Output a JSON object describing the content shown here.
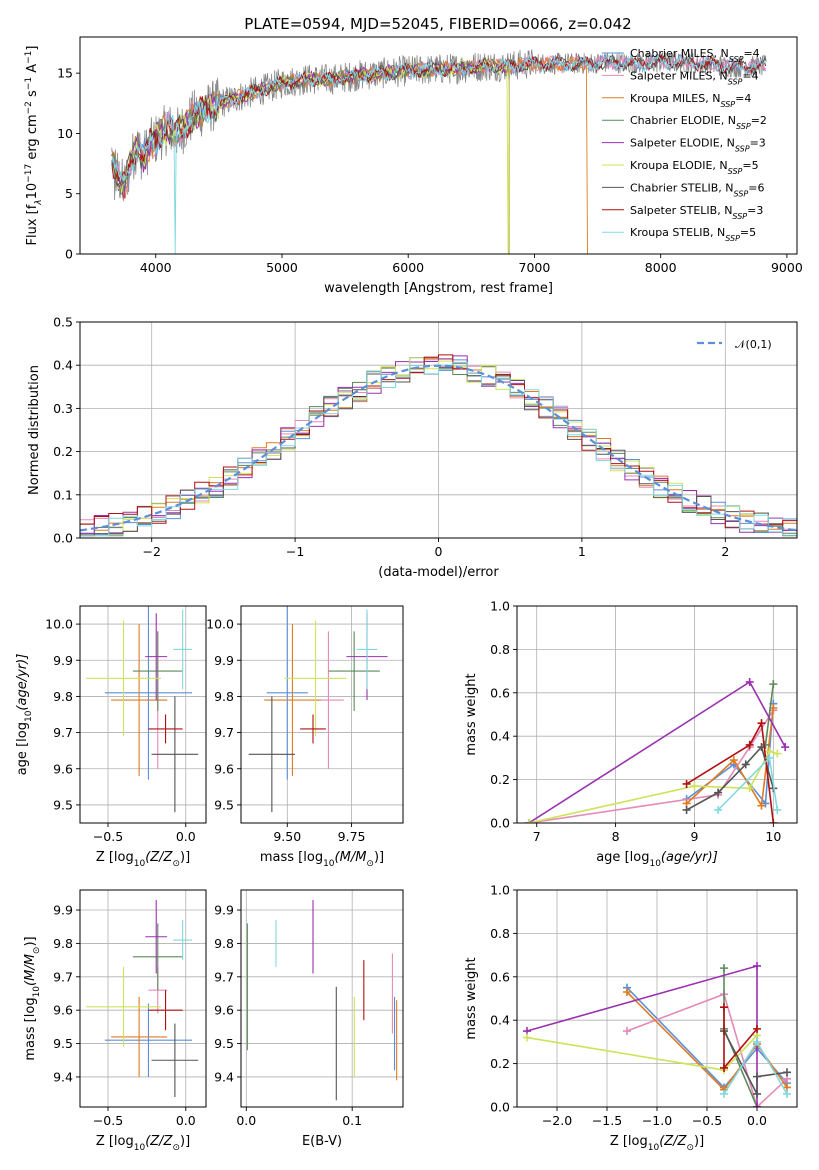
{
  "figure_title": "PLATE=0594, MJD=52045, FIBERID=0066, z=0.042",
  "palette": {
    "Chabrier MILES": "#5b8fd9",
    "Salpeter MILES": "#e58ab8",
    "Kroupa MILES": "#e07b22",
    "Chabrier ELODIE": "#5c8a5a",
    "Salpeter ELODIE": "#9a30b0",
    "Kroupa ELODIE": "#cfe35a",
    "Chabrier STELIB": "#555555",
    "Salpeter STELIB": "#b01010",
    "Kroupa STELIB": "#80d8e0"
  },
  "chart_data": [
    {
      "id": "spectrum",
      "type": "line",
      "title": "PLATE=0594, MJD=52045, FIBERID=0066, z=0.042",
      "xlabel": "wavelength [Angstrom, rest frame]",
      "ylabel_main": "Flux [f",
      "ylabel_unit": "10",
      "ylabel_exp1": "−17",
      "ylabel_mid": " erg cm",
      "ylabel_exp2": "−2",
      "ylabel_s": " s",
      "ylabel_exp3": "−1",
      "ylabel_end": " A",
      "ylabel_exp4": "−1",
      "ylabel_close": "]",
      "xlim": [
        3400,
        9080
      ],
      "ylim": [
        0,
        18
      ],
      "xticks": [
        "4000",
        "5000",
        "6000",
        "7000",
        "8000",
        "9000"
      ],
      "xtick_values": [
        4000,
        5000,
        6000,
        7000,
        8000,
        9000
      ],
      "yticks": [
        "0",
        "5",
        "10",
        "15"
      ],
      "ytick_values": [
        0,
        5,
        10,
        15
      ],
      "grid": false,
      "legend_position": "top-right",
      "envelope": {
        "x": [
          3650,
          3700,
          3750,
          3800,
          3850,
          3900,
          3950,
          4000,
          4050,
          4100,
          4150,
          4200,
          4300,
          4400,
          4500,
          4600,
          4700,
          4800,
          4900,
          5000,
          5200,
          5400,
          5600,
          5800,
          6000,
          6200,
          6400,
          6600,
          6800,
          7000,
          7200,
          7400,
          7600,
          7800,
          8000,
          8200,
          8400,
          8600,
          8840
        ],
        "y": [
          8.0,
          6.5,
          5.5,
          7.5,
          9.0,
          8.0,
          9.0,
          9.5,
          10.0,
          10.5,
          10.0,
          10.2,
          11.5,
          12.0,
          12.5,
          12.8,
          13.2,
          13.5,
          13.8,
          14.2,
          14.5,
          14.5,
          14.8,
          15.0,
          15.2,
          15.3,
          15.4,
          15.6,
          15.6,
          15.8,
          15.8,
          15.8,
          15.9,
          15.8,
          15.9,
          15.9,
          15.7,
          15.5,
          15.6
        ]
      },
      "series": [
        {
          "name": "Chabrier MILES",
          "n_ssp": "4",
          "end_x": 8840,
          "dropout_x": null
        },
        {
          "name": "Salpeter MILES",
          "n_ssp": "4",
          "end_x": 8840,
          "dropout_x": null
        },
        {
          "name": "Kroupa MILES",
          "n_ssp": "4",
          "end_x": 7420,
          "dropout_x": null
        },
        {
          "name": "Chabrier ELODIE",
          "n_ssp": "2",
          "end_x": 6800,
          "dropout_x": null
        },
        {
          "name": "Salpeter ELODIE",
          "n_ssp": "3",
          "end_x": 6800,
          "dropout_x": null
        },
        {
          "name": "Kroupa ELODIE",
          "n_ssp": "5",
          "end_x": 6800,
          "dropout_x": 6790
        },
        {
          "name": "Chabrier STELIB",
          "n_ssp": "6",
          "end_x": 8840,
          "dropout_x": null
        },
        {
          "name": "Salpeter STELIB",
          "n_ssp": "3",
          "end_x": 8840,
          "dropout_x": null
        },
        {
          "name": "Kroupa STELIB",
          "n_ssp": "5",
          "end_x": 8840,
          "dropout_x": 4150
        }
      ]
    },
    {
      "id": "residual-histogram",
      "type": "line",
      "xlabel": "(data-model)/error",
      "ylabel": "Normed distribution",
      "xlim": [
        -2.5,
        2.5
      ],
      "ylim": [
        0,
        0.5
      ],
      "xticks": [
        "−2",
        "−1",
        "0",
        "1",
        "2"
      ],
      "xtick_values": [
        -2,
        -1,
        0,
        1,
        2
      ],
      "yticks": [
        "0.0",
        "0.1",
        "0.2",
        "0.3",
        "0.4",
        "0.5"
      ],
      "ytick_values": [
        0,
        0.1,
        0.2,
        0.3,
        0.4,
        0.5
      ],
      "grid": true,
      "legend_position": "top-right",
      "reference_label": "𝒩(0,1)",
      "bin_width": 0.1,
      "bins_from": -2.5,
      "series": [
        {
          "name": "Chabrier MILES"
        },
        {
          "name": "Salpeter MILES"
        },
        {
          "name": "Kroupa MILES"
        },
        {
          "name": "Chabrier ELODIE"
        },
        {
          "name": "Salpeter ELODIE"
        },
        {
          "name": "Kroupa ELODIE"
        },
        {
          "name": "Chabrier STELIB"
        },
        {
          "name": "Salpeter STELIB"
        },
        {
          "name": "Kroupa STELIB"
        }
      ]
    },
    {
      "id": "age-vs-Z",
      "type": "scatter",
      "xlabel_main": "Z [log",
      "xlabel_sub": "10",
      "xlabel_rest": "(Z/Z",
      "xlabel_sun": "⊙",
      "xlabel_close": ")]",
      "ylabel_main": "age  [log",
      "ylabel_sub": "10",
      "ylabel_rest": "(age/yr)]",
      "xlim": [
        -0.68,
        0.13
      ],
      "ylim": [
        9.45,
        10.05
      ],
      "xticks": [
        "−0.5",
        "0.0"
      ],
      "xtick_values": [
        -0.5,
        0.0
      ],
      "yticks": [
        "9.5",
        "9.6",
        "9.7",
        "9.8",
        "9.9",
        "10.0"
      ],
      "ytick_values": [
        9.5,
        9.6,
        9.7,
        9.8,
        9.9,
        10.0
      ],
      "grid": true,
      "points": [
        {
          "name": "Chabrier MILES",
          "x": -0.24,
          "xerr": 0.28,
          "y": 9.81,
          "yerr": 0.24
        },
        {
          "name": "Salpeter MILES",
          "x": -0.18,
          "xerr": 0.06,
          "y": 9.79,
          "yerr": 0.19
        },
        {
          "name": "Kroupa MILES",
          "x": -0.3,
          "xerr": 0.18,
          "y": 9.79,
          "yerr": 0.21
        },
        {
          "name": "Chabrier ELODIE",
          "x": -0.18,
          "xerr": 0.16,
          "y": 9.87,
          "yerr": 0.11
        },
        {
          "name": "Salpeter ELODIE",
          "x": -0.19,
          "xerr": 0.07,
          "y": 9.91,
          "yerr": 0.12
        },
        {
          "name": "Kroupa ELODIE",
          "x": -0.4,
          "xerr": 0.24,
          "y": 9.85,
          "yerr": 0.16
        },
        {
          "name": "Chabrier STELIB",
          "x": -0.07,
          "xerr": 0.15,
          "y": 9.64,
          "yerr": 0.16
        },
        {
          "name": "Salpeter STELIB",
          "x": -0.13,
          "xerr": 0.11,
          "y": 9.71,
          "yerr": 0.04
        },
        {
          "name": "Kroupa STELIB",
          "x": -0.02,
          "xerr": 0.06,
          "y": 9.93,
          "yerr": 0.11
        }
      ]
    },
    {
      "id": "age-vs-mass",
      "type": "scatter",
      "xlabel_main": "mass [log",
      "xlabel_sub": "10",
      "xlabel_rest": "(M/M",
      "xlabel_sun": "⊙",
      "xlabel_close": ")]",
      "xlim": [
        9.32,
        9.95
      ],
      "ylim": [
        9.45,
        10.05
      ],
      "xticks": [
        "9.50",
        "9.75"
      ],
      "xtick_values": [
        9.5,
        9.75
      ],
      "yticks": [
        "9.5",
        "9.6",
        "9.7",
        "9.8",
        "9.9",
        "10.0"
      ],
      "ytick_values": [
        9.5,
        9.6,
        9.7,
        9.8,
        9.9,
        10.0
      ],
      "grid": true,
      "points": [
        {
          "name": "Chabrier MILES",
          "x": 9.5,
          "xerr": 0.08,
          "y": 9.81,
          "yerr": 0.24
        },
        {
          "name": "Salpeter MILES",
          "x": 9.66,
          "xerr": 0.06,
          "y": 9.79,
          "yerr": 0.19
        },
        {
          "name": "Kroupa MILES",
          "x": 9.52,
          "xerr": 0.11,
          "y": 9.79,
          "yerr": 0.21
        },
        {
          "name": "Chabrier ELODIE",
          "x": 9.76,
          "xerr": 0.1,
          "y": 9.87,
          "yerr": 0.11
        },
        {
          "name": "Salpeter ELODIE",
          "x": 9.81,
          "xerr": 0.08,
          "y": 9.91,
          "yerr": 0.12
        },
        {
          "name": "Kroupa ELODIE",
          "x": 9.61,
          "xerr": 0.12,
          "y": 9.85,
          "yerr": 0.16
        },
        {
          "name": "Chabrier STELIB",
          "x": 9.44,
          "xerr": 0.09,
          "y": 9.64,
          "yerr": 0.16
        },
        {
          "name": "Salpeter STELIB",
          "x": 9.6,
          "xerr": 0.05,
          "y": 9.71,
          "yerr": 0.04
        },
        {
          "name": "Kroupa STELIB",
          "x": 9.81,
          "xerr": 0.04,
          "y": 9.93,
          "yerr": 0.11
        }
      ]
    },
    {
      "id": "mass-weight-vs-age",
      "type": "line",
      "xlabel_main": "age  [log",
      "xlabel_sub": "10",
      "xlabel_rest": "(age/yr)]",
      "ylabel": "mass weight",
      "xlim": [
        6.75,
        10.3
      ],
      "ylim": [
        0,
        1.0
      ],
      "xticks": [
        "7",
        "8",
        "9",
        "10"
      ],
      "xtick_values": [
        7,
        8,
        9,
        10
      ],
      "yticks": [
        "0.0",
        "0.2",
        "0.4",
        "0.6",
        "0.8",
        "1.0"
      ],
      "ytick_values": [
        0,
        0.2,
        0.4,
        0.6,
        0.8,
        1.0
      ],
      "grid": true,
      "series": [
        {
          "name": "Chabrier MILES",
          "x": [
            8.9,
            9.5,
            9.9,
            10.0
          ],
          "y": [
            0.11,
            0.27,
            0.09,
            0.55
          ]
        },
        {
          "name": "Salpeter MILES",
          "x": [
            6.9,
            9.3,
            9.7,
            10.0
          ],
          "y": [
            0.0,
            0.13,
            0.35,
            0.52
          ]
        },
        {
          "name": "Kroupa MILES",
          "x": [
            8.9,
            9.5,
            9.85,
            10.0
          ],
          "y": [
            0.09,
            0.29,
            0.08,
            0.53
          ]
        },
        {
          "name": "Chabrier ELODIE",
          "x": [
            9.9,
            10.0
          ],
          "y": [
            0.36,
            0.64
          ]
        },
        {
          "name": "Salpeter ELODIE",
          "x": [
            6.9,
            9.7,
            10.15
          ],
          "y": [
            0.0,
            0.65,
            0.35
          ]
        },
        {
          "name": "Kroupa ELODIE",
          "x": [
            6.9,
            9.0,
            9.7,
            9.95,
            10.05
          ],
          "y": [
            0.0,
            0.17,
            0.16,
            0.33,
            0.32
          ]
        },
        {
          "name": "Chabrier STELIB",
          "x": [
            8.9,
            9.3,
            9.65,
            9.85,
            10.0
          ],
          "y": [
            0.06,
            0.14,
            0.27,
            0.35,
            0.16
          ]
        },
        {
          "name": "Salpeter STELIB",
          "x": [
            8.9,
            9.7,
            9.85,
            10.0
          ],
          "y": [
            0.18,
            0.36,
            0.46,
            0.0
          ]
        },
        {
          "name": "Kroupa STELIB",
          "x": [
            9.3,
            9.95,
            10.05
          ],
          "y": [
            0.06,
            0.3,
            0.06
          ]
        }
      ]
    },
    {
      "id": "mass-vs-Z",
      "type": "scatter",
      "xlabel_main": "Z [log",
      "xlabel_sub": "10",
      "xlabel_rest": "(Z/Z",
      "xlabel_sun": "⊙",
      "xlabel_close": ")]",
      "ylabel_main": "mass [log",
      "ylabel_sub": "10",
      "ylabel_rest": "(M/M",
      "ylabel_sun": "⊙",
      "ylabel_close": ")]",
      "xlim": [
        -0.68,
        0.13
      ],
      "ylim": [
        9.31,
        9.96
      ],
      "xticks": [
        "−0.5",
        "0.0"
      ],
      "xtick_values": [
        -0.5,
        0.0
      ],
      "yticks": [
        "9.4",
        "9.5",
        "9.6",
        "9.7",
        "9.8",
        "9.9"
      ],
      "ytick_values": [
        9.4,
        9.5,
        9.6,
        9.7,
        9.8,
        9.9
      ],
      "grid": true,
      "points": [
        {
          "name": "Chabrier MILES",
          "x": -0.24,
          "xerr": 0.28,
          "y": 9.51,
          "yerr": 0.11
        },
        {
          "name": "Salpeter MILES",
          "x": -0.18,
          "xerr": 0.06,
          "y": 9.66,
          "yerr": 0.07
        },
        {
          "name": "Kroupa MILES",
          "x": -0.3,
          "xerr": 0.18,
          "y": 9.52,
          "yerr": 0.12
        },
        {
          "name": "Chabrier ELODIE",
          "x": -0.18,
          "xerr": 0.16,
          "y": 9.76,
          "yerr": 0.1
        },
        {
          "name": "Salpeter ELODIE",
          "x": -0.19,
          "xerr": 0.07,
          "y": 9.82,
          "yerr": 0.11
        },
        {
          "name": "Kroupa ELODIE",
          "x": -0.4,
          "xerr": 0.24,
          "y": 9.61,
          "yerr": 0.12
        },
        {
          "name": "Chabrier STELIB",
          "x": -0.07,
          "xerr": 0.15,
          "y": 9.45,
          "yerr": 0.11
        },
        {
          "name": "Salpeter STELIB",
          "x": -0.13,
          "xerr": 0.11,
          "y": 9.6,
          "yerr": 0.06
        },
        {
          "name": "Kroupa STELIB",
          "x": -0.02,
          "xerr": 0.06,
          "y": 9.81,
          "yerr": 0.06
        }
      ]
    },
    {
      "id": "mass-vs-ebv",
      "type": "scatter",
      "xlabel": "E(B-V)",
      "xlim": [
        -0.005,
        0.148
      ],
      "ylim": [
        9.31,
        9.96
      ],
      "xticks": [
        "0.0",
        "0.1"
      ],
      "xtick_values": [
        0.0,
        0.1
      ],
      "yticks": [
        "9.4",
        "9.5",
        "9.6",
        "9.7",
        "9.8",
        "9.9"
      ],
      "ytick_values": [
        9.4,
        9.5,
        9.6,
        9.7,
        9.8,
        9.9
      ],
      "grid": true,
      "points": [
        {
          "name": "Chabrier MILES",
          "x": 0.14,
          "y": 9.53,
          "yerr": 0.11
        },
        {
          "name": "Salpeter MILES",
          "x": 0.138,
          "y": 9.65,
          "yerr": 0.12
        },
        {
          "name": "Kroupa MILES",
          "x": 0.142,
          "y": 9.51,
          "yerr": 0.12
        },
        {
          "name": "Chabrier ELODIE",
          "x": 0.001,
          "y": 9.67,
          "yerr": 0.19
        },
        {
          "name": "Salpeter ELODIE",
          "x": 0.063,
          "y": 9.82,
          "yerr": 0.11
        },
        {
          "name": "Kroupa ELODIE",
          "x": 0.102,
          "y": 9.52,
          "yerr": 0.12
        },
        {
          "name": "Chabrier STELIB",
          "x": 0.085,
          "y": 9.5,
          "yerr": 0.17
        },
        {
          "name": "Salpeter STELIB",
          "x": 0.111,
          "y": 9.66,
          "yerr": 0.09
        },
        {
          "name": "Kroupa STELIB",
          "x": 0.028,
          "y": 9.8,
          "yerr": 0.07
        }
      ]
    },
    {
      "id": "mass-weight-vs-Z",
      "type": "line",
      "xlabel_main": "Z [log",
      "xlabel_sub": "10",
      "xlabel_rest": "(Z/Z",
      "xlabel_sun": "⊙",
      "xlabel_close": ")]",
      "ylabel": "mass weight",
      "xlim": [
        -2.4,
        0.4
      ],
      "ylim": [
        0,
        1.0
      ],
      "xticks": [
        "−2.0",
        "−1.5",
        "−1.0",
        "−0.5",
        "0.0"
      ],
      "xtick_values": [
        -2.0,
        -1.5,
        -1.0,
        -0.5,
        0.0
      ],
      "yticks": [
        "0.0",
        "0.2",
        "0.4",
        "0.6",
        "0.8",
        "1.0"
      ],
      "ytick_values": [
        0,
        0.2,
        0.4,
        0.6,
        0.8,
        1.0
      ],
      "grid": true,
      "series": [
        {
          "name": "Chabrier MILES",
          "x": [
            -1.3,
            -0.33,
            0.0,
            0.3
          ],
          "y": [
            0.55,
            0.09,
            0.27,
            0.11
          ]
        },
        {
          "name": "Salpeter MILES",
          "x": [
            -1.3,
            -0.33,
            0.0,
            0.3
          ],
          "y": [
            0.35,
            0.52,
            0.0,
            0.13
          ]
        },
        {
          "name": "Kroupa MILES",
          "x": [
            -1.3,
            -0.33,
            0.0,
            0.3
          ],
          "y": [
            0.53,
            0.08,
            0.29,
            0.09
          ]
        },
        {
          "name": "Chabrier ELODIE",
          "x": [
            -0.33,
            -0.33,
            0.0
          ],
          "y": [
            0.64,
            0.36,
            0.0
          ]
        },
        {
          "name": "Salpeter ELODIE",
          "x": [
            -2.3,
            0.0,
            0.0
          ],
          "y": [
            0.35,
            0.65,
            0.0
          ]
        },
        {
          "name": "Kroupa ELODIE",
          "x": [
            -2.3,
            -0.33,
            0.0
          ],
          "y": [
            0.32,
            0.17,
            0.33
          ]
        },
        {
          "name": "Chabrier STELIB",
          "x": [
            -0.33,
            0.0,
            0.0,
            0.3
          ],
          "y": [
            0.35,
            0.06,
            0.14,
            0.16
          ]
        },
        {
          "name": "Salpeter STELIB",
          "x": [
            -0.33,
            -0.33,
            0.0
          ],
          "y": [
            0.46,
            0.18,
            0.36
          ]
        },
        {
          "name": "Kroupa STELIB",
          "x": [
            -0.33,
            0.0,
            0.3
          ],
          "y": [
            0.06,
            0.3,
            0.06
          ]
        }
      ]
    }
  ]
}
